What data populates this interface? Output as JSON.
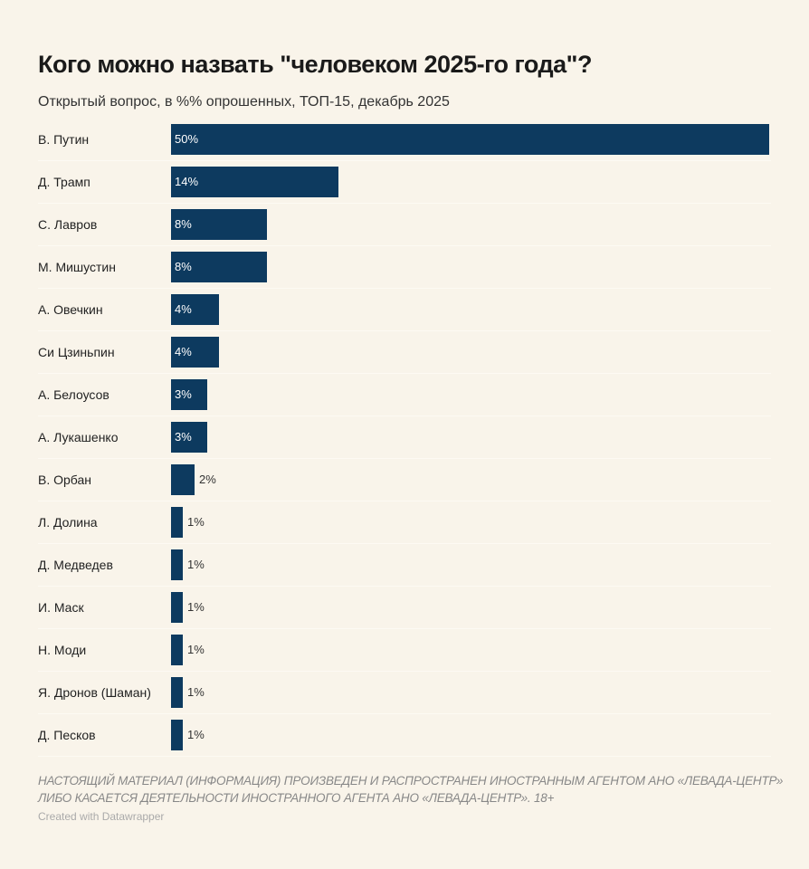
{
  "header": {
    "title": "Кого можно назвать \"человеком 2025-го года\"?",
    "subtitle": "Открытый вопрос, в %% опрошенных, ТОП-15, декабрь 2025"
  },
  "footer": {
    "note": "НАСТОЯЩИЙ МАТЕРИАЛ (ИНФОРМАЦИЯ) ПРОИЗВЕДЕН И РАСПРОСТРАНЕН ИНОСТРАННЫМ АГЕНТОМ АНО «ЛЕВАДА-ЦЕНТР» ЛИБО КАСАЕТСЯ ДЕЯТЕЛЬНОСТИ ИНОСТРАННОГО АГЕНТА АНО «ЛЕВАДА-ЦЕНТР». 18+",
    "credit": "Created with Datawrapper"
  },
  "colors": {
    "bar": "#0d3a5f",
    "background": "#f9f4ea"
  },
  "chart_data": {
    "type": "bar",
    "orientation": "horizontal",
    "title": "Кого можно назвать \"человеком 2025-го года\"?",
    "subtitle": "Открытый вопрос, в %% опрошенных, ТОП-15, декабрь 2025",
    "xlabel": "",
    "ylabel": "",
    "unit": "%",
    "xlim": [
      0,
      50
    ],
    "grid": false,
    "categories": [
      "В. Путин",
      "Д. Трамп",
      "С. Лавров",
      "М. Мишустин",
      "А. Овечкин",
      "Си Цзиньпин",
      "А. Белоусов",
      "А. Лукашенко",
      "В. Орбан",
      "Л. Долина",
      "Д. Медведев",
      "И. Маск",
      "Н. Моди",
      "Я. Дронов (Шаман)",
      "Д. Песков"
    ],
    "values": [
      50,
      14,
      8,
      8,
      4,
      4,
      3,
      3,
      2,
      1,
      1,
      1,
      1,
      1,
      1
    ],
    "labels": [
      "50%",
      "14%",
      "8%",
      "8%",
      "4%",
      "4%",
      "3%",
      "3%",
      "2%",
      "1%",
      "1%",
      "1%",
      "1%",
      "1%",
      "1%"
    ]
  }
}
